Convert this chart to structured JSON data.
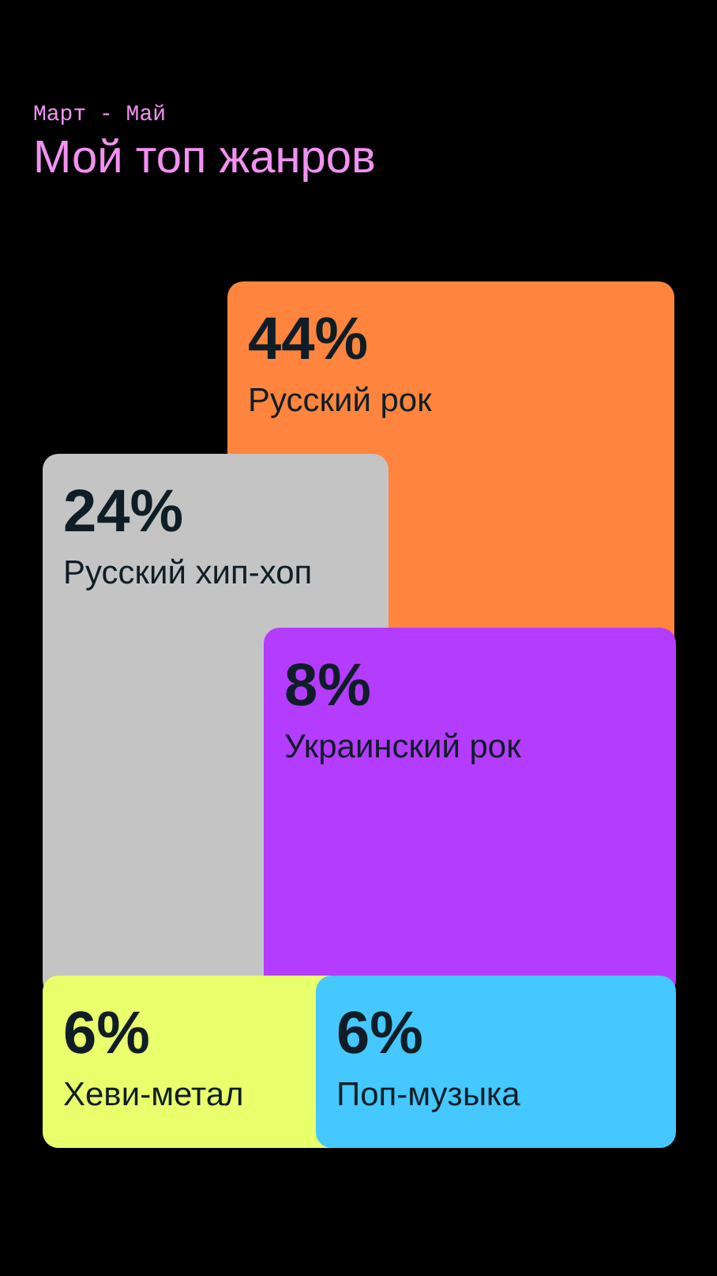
{
  "chart_data": {
    "type": "other",
    "title": "Мой топ жанров",
    "subtitle": "Март - Май",
    "categories": [
      "Русский рок",
      "Русский хип-хоп",
      "Украинский рок",
      "Хеви-метал",
      "Поп-музыка"
    ],
    "values": [
      44,
      24,
      8,
      6,
      6
    ],
    "value_labels": [
      "44%",
      "24%",
      "8%",
      "6%",
      "6%"
    ],
    "colors": [
      "#ff843e",
      "#c4c4c4",
      "#b43cff",
      "#eaff6c",
      "#44c8ff"
    ]
  }
}
